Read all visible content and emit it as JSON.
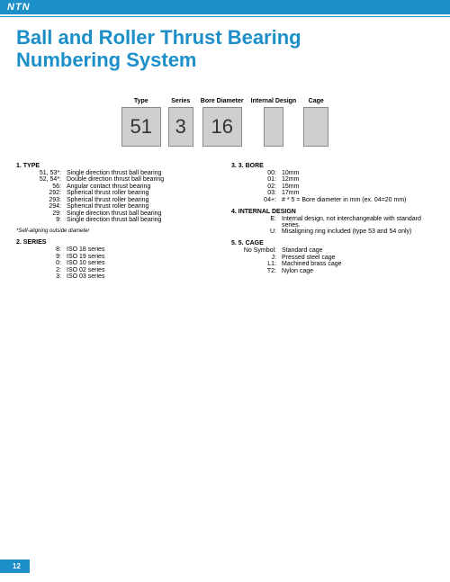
{
  "brand": "NTN",
  "title_line1": "Ball and Roller Thrust Bearing",
  "title_line2": "Numbering System",
  "page_number": "12",
  "boxes": [
    {
      "label": "Type",
      "value": "51",
      "size": "lg"
    },
    {
      "label": "Series",
      "value": "3",
      "size": "md"
    },
    {
      "label": "Bore Diameter",
      "value": "16",
      "size": "lg"
    },
    {
      "label": "Internal Design",
      "value": "",
      "size": "sm"
    },
    {
      "label": "Cage",
      "value": "",
      "size": "md"
    }
  ],
  "left": {
    "sec1": {
      "head": "1.    TYPE",
      "items": [
        {
          "k": "51, 53*:",
          "v": "Single direction thrust ball bearing"
        },
        {
          "k": "52, 54*:",
          "v": "Double direction thrust ball bearing"
        },
        {
          "k": "56:",
          "v": "Angular contact thrust bearing"
        },
        {
          "k": "292:",
          "v": "Spherical thrust roller bearing"
        },
        {
          "k": "293:",
          "v": "Spherical thrust roller bearing"
        },
        {
          "k": "294:",
          "v": "Spherical thrust roller bearing"
        },
        {
          "k": "29:",
          "v": "Single direction thrust ball bearing"
        },
        {
          "k": "9:",
          "v": "Single direction thrust ball bearing"
        }
      ]
    },
    "footnote": "*Self-aligning outside diameter",
    "sec2": {
      "head": "2.    SERIES",
      "items": [
        {
          "k": "8:",
          "v": "ISO 18 series"
        },
        {
          "k": "9:",
          "v": "ISO 19 series"
        },
        {
          "k": "0:",
          "v": "ISO 10 series"
        },
        {
          "k": "2:",
          "v": "ISO 02 series"
        },
        {
          "k": "3:",
          "v": "ISO 03 series"
        }
      ]
    }
  },
  "right": {
    "sec3": {
      "head": "3.    3. BORE",
      "items": [
        {
          "k": "00:",
          "v": "10mm"
        },
        {
          "k": "01:",
          "v": "12mm"
        },
        {
          "k": "02:",
          "v": "15mm"
        },
        {
          "k": "03:",
          "v": "17mm"
        },
        {
          "k": "04+:",
          "v": "# * 5 = Bore diameter in mm (ex. 04=20 mm)"
        }
      ]
    },
    "sec4": {
      "head": "4.    INTERNAL DESIGN",
      "items": [
        {
          "k": "E:",
          "v": "Internal design, not interchangeable with standard series."
        },
        {
          "k": "U:",
          "v": "Misaligning ring included (type 53 and 54 only)"
        }
      ]
    },
    "sec5": {
      "head": "5.    5. CAGE",
      "items": [
        {
          "k": "No Symbol:",
          "v": "Standard cage"
        },
        {
          "k": "J:",
          "v": "Pressed steel cage"
        },
        {
          "k": "L1:",
          "v": "Machined brass cage"
        },
        {
          "k": "T2:",
          "v": "Nylon cage"
        }
      ]
    }
  }
}
